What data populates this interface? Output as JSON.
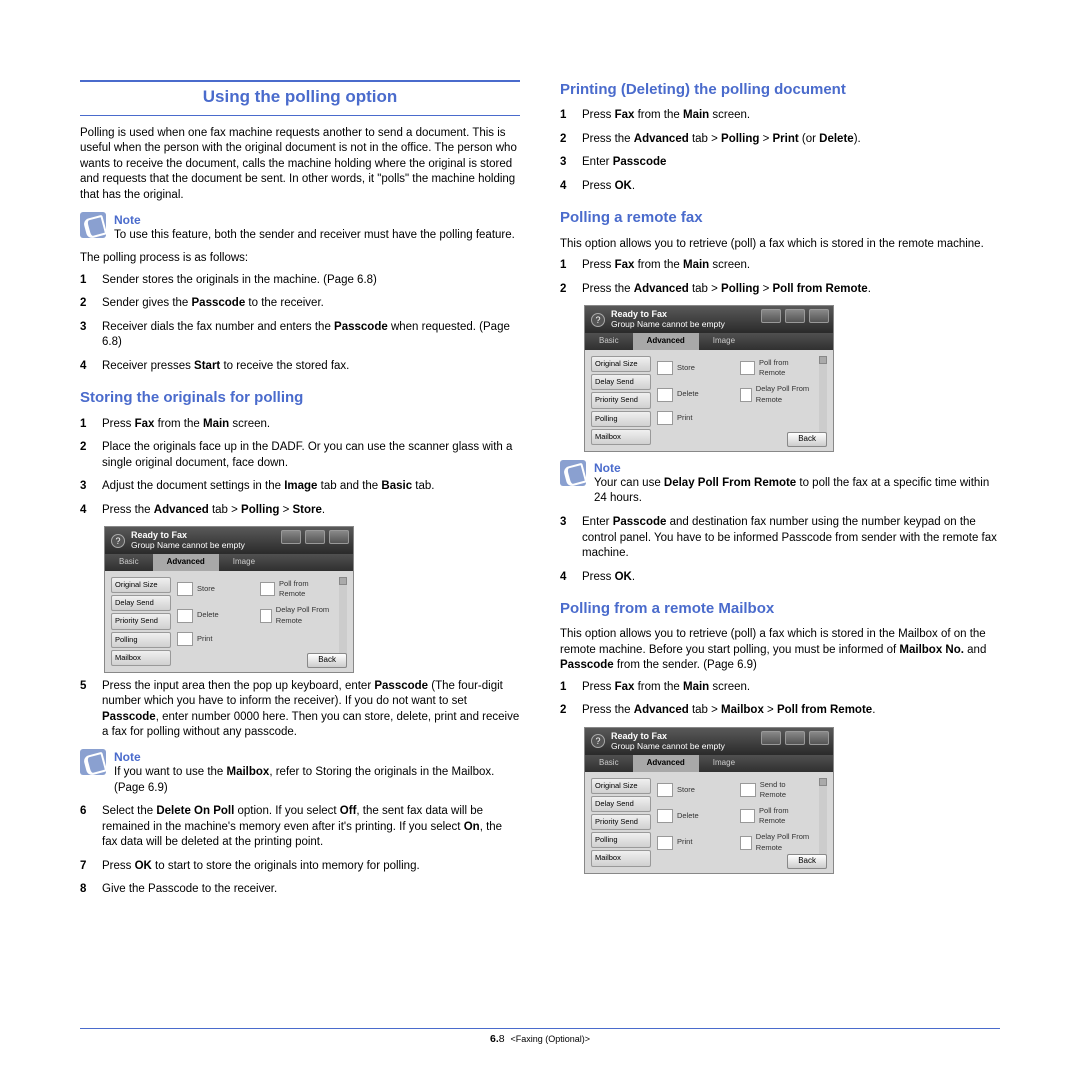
{
  "left": {
    "main_title": "Using the polling option",
    "intro": "Polling is used when one fax machine requests another to send a document. This is useful when the person with the original document is not in the office. The person who wants to receive the document, calls the machine holding where the original is stored and requests that the document be sent. In other words, it \"polls\" the machine holding that has the original.",
    "note1_label": "Note",
    "note1_text": "To use this feature, both the sender and receiver must have the polling feature.",
    "process_intro": "The polling process is as follows:",
    "process": [
      {
        "n": "1",
        "t_pre": "Sender stores the originals in the machine. (Page 6.8)"
      },
      {
        "n": "2",
        "t_html": "Sender gives the <b>Passcode</b> to the receiver."
      },
      {
        "n": "3",
        "t_html": "Receiver dials the fax number and enters the <b>Passcode</b> when requested. (Page 6.8)"
      },
      {
        "n": "4",
        "t_html": "Receiver presses <b>Start</b> to receive the stored fax."
      }
    ],
    "storing_title": "Storing the originals for polling",
    "storing_steps_a": [
      {
        "n": "1",
        "t_html": "Press <b>Fax</b> from the <b>Main</b> screen."
      },
      {
        "n": "2",
        "t_html": "Place the originals face up in the DADF. Or you can use the scanner glass with a single original document, face down."
      },
      {
        "n": "3",
        "t_html": "Adjust the document settings in the <b>Image</b> tab and the <b>Basic</b> tab."
      },
      {
        "n": "4",
        "t_html": "Press the <b>Advanced</b> tab > <b>Polling</b> > <b>Store</b>."
      }
    ],
    "storing_steps_b": [
      {
        "n": "5",
        "t_html": "Press the input area then the pop up keyboard, enter <b>Passcode</b> (The four-digit number which you have to inform the receiver). If you do not want to set <b>Passcode</b>, enter number 0000 here. Then you can store, delete, print and receive a fax for polling without any passcode."
      }
    ],
    "note2_label": "Note",
    "note2_text_html": "If you want to use the <b>Mailbox</b>, refer to Storing the originals in the Mailbox. (Page 6.9)",
    "storing_steps_c": [
      {
        "n": "6",
        "t_html": "Select the <b>Delete On Poll</b> option. If you select <b>Off</b>, the sent fax data will be remained in the machine's memory even after it's printing. If you select <b>On</b>, the fax data will be deleted at the printing point."
      },
      {
        "n": "7",
        "t_html": "Press <b>OK</b> to start to store the originals into memory for polling."
      },
      {
        "n": "8",
        "t_html": "Give the Passcode to the receiver."
      }
    ]
  },
  "right": {
    "printing_title": "Printing (Deleting) the polling document",
    "printing_steps": [
      {
        "n": "1",
        "t_html": "Press <b>Fax</b> from the <b>Main</b> screen."
      },
      {
        "n": "2",
        "t_html": "Press the <b>Advanced</b> tab > <b>Polling</b> > <b>Print</b> (or <b>Delete</b>)."
      },
      {
        "n": "3",
        "t_html": "Enter <b>Passcode</b>"
      },
      {
        "n": "4",
        "t_html": "Press <b>OK</b>."
      }
    ],
    "polling_remote_title": "Polling a remote fax",
    "polling_remote_intro": "This option allows you to retrieve (poll) a fax which is stored in the remote machine.",
    "polling_remote_steps_a": [
      {
        "n": "1",
        "t_html": "Press <b>Fax</b> from the <b>Main</b> screen."
      },
      {
        "n": "2",
        "t_html": "Press the <b>Advanced</b> tab > <b>Polling</b> > <b>Poll from Remote</b>."
      }
    ],
    "note3_label": "Note",
    "note3_text_html": "Your can use <b>Delay Poll From Remote</b> to poll the fax at a specific time within 24 hours.",
    "polling_remote_steps_b": [
      {
        "n": "3",
        "t_html": "Enter <b>Passcode</b> and destination fax number using the number keypad on the control panel. You have to be informed Passcode from sender with the remote fax machine."
      },
      {
        "n": "4",
        "t_html": "Press <b>OK</b>."
      }
    ],
    "mailbox_title": "Polling from a remote Mailbox",
    "mailbox_intro_html": "This option allows you to retrieve (poll) a fax which is stored in the Mailbox of on the remote machine. Before you start polling, you must be informed of <b>Mailbox No.</b> and <b>Passcode</b> from the sender. (Page 6.9)",
    "mailbox_steps": [
      {
        "n": "1",
        "t_html": "Press <b>Fax</b> from the <b>Main</b> screen."
      },
      {
        "n": "2",
        "t_html": "Press the <b>Advanced</b> tab > <b>Mailbox</b> > <b>Poll from Remote</b>."
      }
    ]
  },
  "screenshot": {
    "header_l1": "Ready to Fax",
    "header_l2": "Group Name cannot be empty",
    "tabs": [
      "Basic",
      "Advanced",
      "Image"
    ],
    "side": [
      "Original Size",
      "Delay Send",
      "Priority Send",
      "Polling",
      "Mailbox"
    ],
    "opts_polling": [
      "Store",
      "Poll from Remote",
      "Delete",
      "Delay Poll From Remote",
      "Print",
      ""
    ],
    "opts_mailbox": [
      "Store",
      "Send to Remote",
      "Delete",
      "Poll from Remote",
      "Print",
      "Delay Poll From Remote"
    ],
    "back": "Back"
  },
  "footer": {
    "page": "6.",
    "num": "8",
    "label": "<Faxing (Optional)>"
  }
}
